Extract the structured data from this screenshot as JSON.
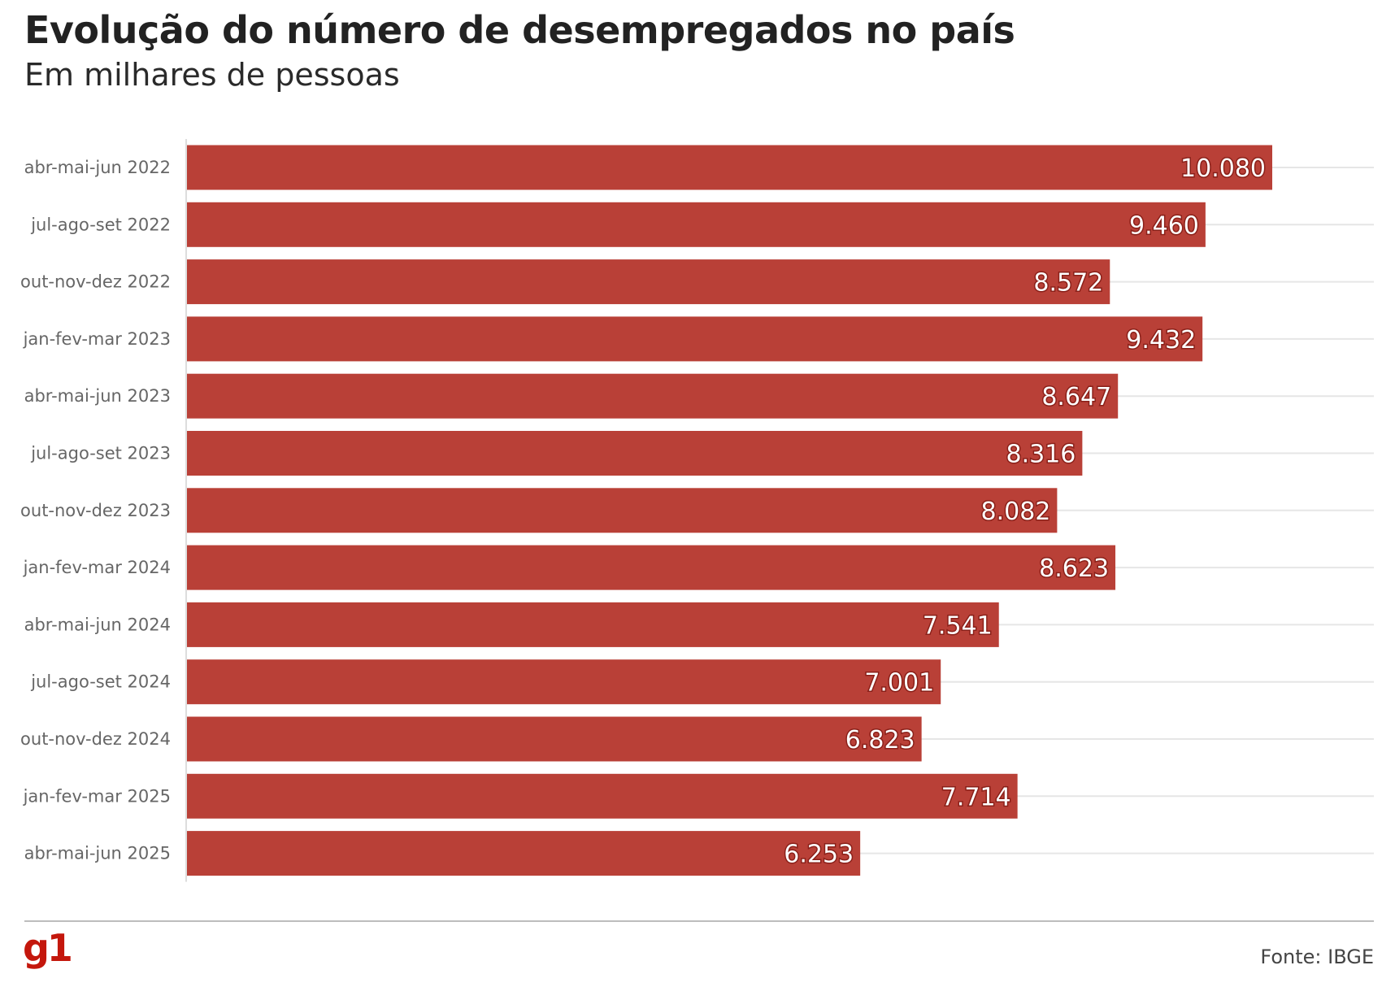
{
  "title": "Evolução do número de desempregados no país",
  "subtitle": "Em milhares de pessoas",
  "source": "Fonte: IBGE",
  "logo_text": "g1",
  "colors": {
    "bar": "#b94037",
    "grid": "#e6e6e6",
    "axis": "#dddddd",
    "logo": "#c4170c"
  },
  "chart_data": {
    "type": "bar",
    "orientation": "horizontal",
    "categories": [
      "abr-mai-jun 2022",
      "jul-ago-set 2022",
      "out-nov-dez 2022",
      "jan-fev-mar 2023",
      "abr-mai-jun 2023",
      "jul-ago-set 2023",
      "out-nov-dez 2023",
      "jan-fev-mar 2024",
      "abr-mai-jun 2024",
      "jul-ago-set 2024",
      "out-nov-dez 2024",
      "jan-fev-mar 2025",
      "abr-mai-jun 2025"
    ],
    "values": [
      10080,
      9460,
      8572,
      9432,
      8647,
      8316,
      8082,
      8623,
      7541,
      7001,
      6823,
      7714,
      6253
    ],
    "value_labels": [
      "10.080",
      "9.460",
      "8.572",
      "9.432",
      "8.647",
      "8.316",
      "8.082",
      "8.623",
      "7.541",
      "7.001",
      "6.823",
      "7.714",
      "6.253"
    ],
    "xlim": [
      0,
      11000
    ],
    "grid": true,
    "legend": "none"
  }
}
